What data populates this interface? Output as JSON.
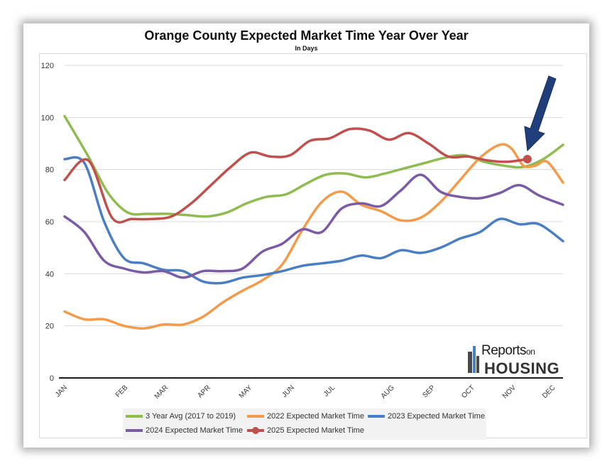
{
  "chart_data": {
    "type": "line",
    "title": "Orange County Expected Market Time Year Over Year",
    "subtitle": "In Days",
    "xlabel": "",
    "ylabel": "",
    "ylim": [
      0,
      120
    ],
    "yticks": [
      0,
      20,
      40,
      60,
      80,
      100,
      120
    ],
    "xlim": [
      0,
      12.6
    ],
    "x_tick_labels": [
      "JAN",
      "FEB",
      "MAR",
      "APR",
      "MAY",
      "JUN",
      "JUL",
      "AUG",
      "SEP",
      "OCT",
      "NOV",
      "DEC"
    ],
    "x_tick_positions": [
      0,
      1.53,
      2.55,
      3.62,
      4.67,
      5.74,
      6.77,
      8.27,
      9.3,
      10.3,
      11.34,
      12.34
    ],
    "grid": true,
    "legend_position": "bottom",
    "series": [
      {
        "name": "3 Year Avg (2017 to 2019)",
        "color": "#8fbc50",
        "marker": "none",
        "x": [
          0,
          0.6,
          1.1,
          1.6,
          2.1,
          2.6,
          3.1,
          3.6,
          4.1,
          4.6,
          5.1,
          5.6,
          6.1,
          6.6,
          7.1,
          7.6,
          8.1,
          8.6,
          9.1,
          9.6,
          10.1,
          10.6,
          11.1,
          11.6,
          12.1,
          12.6
        ],
        "values": [
          100.5,
          85,
          71,
          63.5,
          63,
          63,
          62.5,
          62,
          63.5,
          67,
          69.5,
          70.5,
          74.5,
          78,
          78.5,
          77,
          78.5,
          80.5,
          82.5,
          84.5,
          85.5,
          83,
          81.5,
          81,
          84,
          89.5
        ]
      },
      {
        "name": "2022 Expected Market Time",
        "color": "#f39b4a",
        "marker": "none",
        "x": [
          0,
          0.5,
          1,
          1.5,
          2,
          2.5,
          3,
          3.5,
          4,
          4.5,
          5,
          5.5,
          6,
          6.5,
          7,
          7.5,
          8,
          8.5,
          9,
          9.5,
          10,
          10.5,
          11,
          11.3,
          11.6,
          11.9,
          12.2,
          12.6
        ],
        "values": [
          25.5,
          22.5,
          22.5,
          20,
          19,
          20.5,
          20.5,
          23.5,
          29,
          33.5,
          37.5,
          43.5,
          56.5,
          67.5,
          71.5,
          66.5,
          64,
          60.5,
          61.5,
          67.5,
          76,
          84.5,
          89.5,
          88,
          81.5,
          81.5,
          83,
          75
        ]
      },
      {
        "name": "2023 Expected Market Time",
        "color": "#4a7ec2",
        "marker": "none",
        "x": [
          0,
          0.5,
          1,
          1.5,
          2,
          2.5,
          3,
          3.5,
          4,
          4.5,
          5,
          5.5,
          6,
          6.5,
          7,
          7.5,
          8,
          8.5,
          9,
          9.5,
          10,
          10.5,
          11,
          11.5,
          12,
          12.6
        ],
        "values": [
          84,
          82.5,
          60,
          46,
          44,
          41.5,
          41,
          37,
          36.5,
          38.5,
          39.5,
          41,
          43,
          44,
          45,
          47,
          46,
          49,
          48,
          50,
          53.5,
          56,
          61,
          59,
          59,
          52.5
        ]
      },
      {
        "name": "2024 Expected Market Time",
        "color": "#7b5aa6",
        "marker": "none",
        "x": [
          0,
          0.5,
          1,
          1.5,
          2,
          2.5,
          3,
          3.5,
          4,
          4.5,
          5,
          5.5,
          6,
          6.5,
          7,
          7.5,
          8,
          8.5,
          9,
          9.5,
          10,
          10.5,
          11,
          11.5,
          12,
          12.6
        ],
        "values": [
          62,
          56,
          45,
          42,
          40.5,
          41,
          38.5,
          41,
          41,
          42,
          48.5,
          51.5,
          57,
          56,
          65,
          67,
          66,
          72,
          78,
          71.5,
          69.5,
          69,
          71,
          74,
          70,
          66.5
        ]
      },
      {
        "name": "2025 Expected Market Time",
        "color": "#c0504d",
        "marker": "dot",
        "x": [
          0,
          0.6,
          1.2,
          1.7,
          2.2,
          2.7,
          3.2,
          3.7,
          4.2,
          4.7,
          5.2,
          5.7,
          6.2,
          6.7,
          7.2,
          7.7,
          8.2,
          8.7,
          9.2,
          9.7,
          10.2,
          10.7,
          11.2,
          11.7
        ],
        "values": [
          76,
          83.5,
          61.5,
          61,
          61,
          62,
          67,
          74,
          81,
          86.5,
          85,
          85.5,
          91,
          92,
          95.5,
          95,
          91.5,
          94,
          90,
          85,
          85,
          83.5,
          83,
          84
        ],
        "highlight_last": true
      }
    ],
    "annotation": "arrow pointing to latest 2025 value (NOV)"
  },
  "logo": {
    "line1_big": "eports",
    "line1_small": "on",
    "line2": "HOUSING",
    "letter": "R"
  },
  "colors": {
    "grid": "#d9d9d9",
    "axis": "#1a1a1a",
    "arrow": "#1f3e7a"
  }
}
